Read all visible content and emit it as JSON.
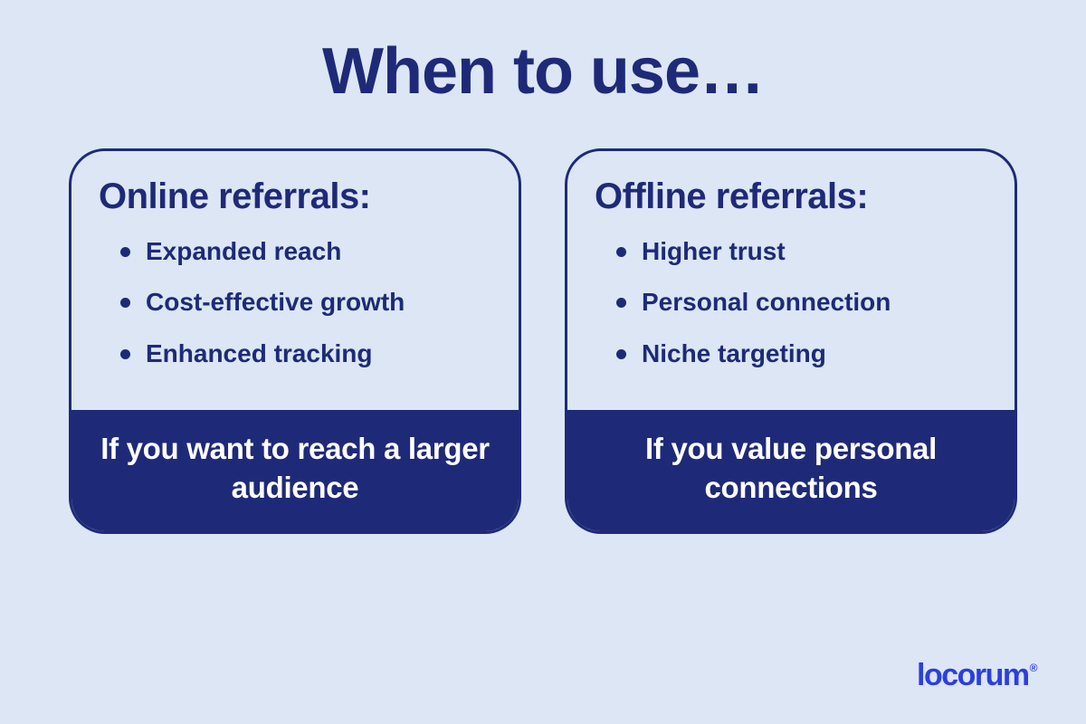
{
  "type": "infographic",
  "background_color": "#dce6f5",
  "text_color": "#1e2a78",
  "accent_color": "#1e2a78",
  "footer_text_color": "#ffffff",
  "logo_color": "#2b3fe0",
  "card_border_color": "#1e2a78",
  "card_border_width": 3,
  "card_border_radius": 40,
  "title": {
    "text": "When to use…",
    "fontsize": 72,
    "weight": 800
  },
  "cards": [
    {
      "heading": "Online referrals:",
      "heading_fontsize": 40,
      "bullets": [
        "Expanded reach",
        "Cost-effective growth",
        "Enhanced tracking"
      ],
      "bullet_fontsize": 28,
      "footer": "If you want to reach a larger audience",
      "footer_fontsize": 33,
      "footer_bg": "#1e2a78"
    },
    {
      "heading": "Offline referrals:",
      "heading_fontsize": 40,
      "bullets": [
        "Higher trust",
        "Personal connection",
        "Niche targeting"
      ],
      "bullet_fontsize": 28,
      "footer": "If you value personal connections",
      "footer_fontsize": 33,
      "footer_bg": "#1e2a78"
    }
  ],
  "logo": {
    "text": "locorum",
    "registered": "®",
    "fontsize": 34
  }
}
